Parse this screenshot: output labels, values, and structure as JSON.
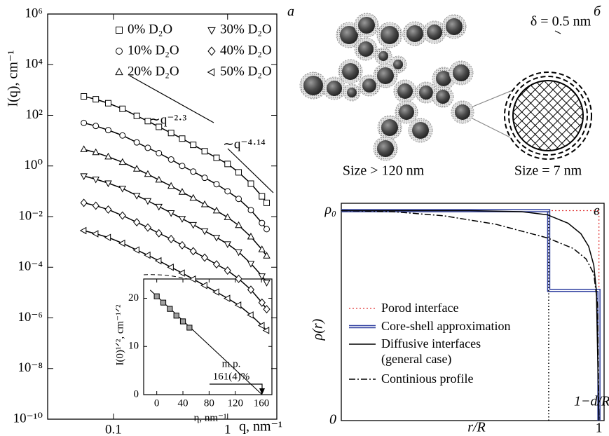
{
  "chart_data": [
    {
      "type": "line",
      "panel_label": "а",
      "xlabel": "q, nm⁻¹",
      "ylabel": "I(q), cm⁻¹",
      "xscale": "log",
      "yscale": "log",
      "xlim": [
        0.0265,
        2.7
      ],
      "ylim": [
        1e-10,
        1000000.0
      ],
      "xticks": [
        0.1,
        1
      ],
      "yticks": [
        {
          "value": 1e-10,
          "label": "10⁻¹⁰"
        },
        {
          "value": 1e-08,
          "label": "10⁻⁸"
        },
        {
          "value": 1e-06,
          "label": "10⁻⁶"
        },
        {
          "value": 0.0001,
          "label": "10⁻⁴"
        },
        {
          "value": 0.01,
          "label": "10⁻²"
        },
        {
          "value": 1,
          "label": "10⁰"
        },
        {
          "value": 100,
          "label": "10²"
        },
        {
          "value": 10000,
          "label": "10⁴"
        },
        {
          "value": 1000000.0,
          "label": "10⁶"
        }
      ],
      "x": [
        0.055,
        0.07,
        0.09,
        0.12,
        0.16,
        0.2,
        0.25,
        0.32,
        0.4,
        0.5,
        0.63,
        0.8,
        1.0,
        1.25,
        1.6,
        2.0,
        2.2
      ],
      "series": [
        {
          "name": "0% D₂O",
          "marker": "square",
          "color": "#000000",
          "values": [
            560,
            430,
            300,
            180,
            95,
            59,
            35,
            20,
            12,
            6.8,
            3.8,
            2.1,
            1.2,
            0.56,
            0.2,
            0.063,
            0.035
          ]
        },
        {
          "name": "10% D₂O",
          "marker": "circle",
          "color": "#000000",
          "values": [
            50,
            38,
            26,
            16,
            8.5,
            5.2,
            3.2,
            1.8,
            1.0,
            0.6,
            0.34,
            0.19,
            0.1,
            0.05,
            0.018,
            0.0056,
            0.0032
          ]
        },
        {
          "name": "20% D₂O",
          "marker": "triangle-up",
          "color": "#000000",
          "values": [
            4.5,
            3.4,
            2.3,
            1.4,
            0.76,
            0.47,
            0.28,
            0.16,
            0.093,
            0.054,
            0.03,
            0.017,
            0.0093,
            0.0045,
            0.0016,
            0.0005,
            0.00028
          ]
        },
        {
          "name": "30% D₂O",
          "marker": "triangle-down",
          "color": "#000000",
          "values": [
            0.4,
            0.3,
            0.21,
            0.13,
            0.068,
            0.042,
            0.025,
            0.014,
            0.0083,
            0.0048,
            0.0027,
            0.0015,
            0.00083,
            0.0004,
            0.00014,
            4.5e-05,
            2.5e-05
          ]
        },
        {
          "name": "40% D₂O",
          "marker": "diamond",
          "color": "#000000",
          "values": [
            0.035,
            0.027,
            0.019,
            0.011,
            0.006,
            0.0037,
            0.0022,
            0.0013,
            0.00074,
            0.00043,
            0.00024,
            0.00013,
            7.4e-05,
            3.5e-05,
            1.3e-05,
            4e-06,
            2.2e-06
          ]
        },
        {
          "name": "50% D₂O",
          "marker": "triangle-left",
          "color": "#000000",
          "values": [
            0.0028,
            0.0021,
            0.0015,
            0.00089,
            0.00048,
            0.0003,
            0.00018,
            0.0001,
            5.9e-05,
            3.4e-05,
            1.9e-05,
            1.05e-05,
            5.9e-06,
            3.2e-06,
            1.3e-06,
            5e-07,
            3.2e-07
          ]
        }
      ],
      "annotations": [
        "∼q⁻²·³",
        "∼q⁻⁴·¹⁴"
      ]
    },
    {
      "type": "scatter",
      "xlabel": "η, nm⁻¹",
      "ylabel": "I(0)¹ᐟ², cm⁻¹ᐟ²",
      "xlim": [
        -20,
        176
      ],
      "ylim": [
        0,
        24
      ],
      "xticks": [
        0,
        40,
        80,
        120,
        160
      ],
      "yticks": [
        0,
        10,
        20
      ],
      "x": [
        0,
        10,
        20,
        30,
        40,
        50
      ],
      "values": [
        20.4,
        19.1,
        17.8,
        16.4,
        15.2,
        13.9
      ],
      "marker": "square",
      "color": "#a0a0a0",
      "fit": {
        "x": [
          -10,
          161
        ],
        "values": [
          21.7,
          0
        ]
      },
      "annotations": [
        "m.p.",
        "161(4)%"
      ]
    },
    {
      "type": "line",
      "panel_label": "в",
      "xlabel": "r/R",
      "ylabel": "ρ(r)",
      "xlim": [
        0,
        1.02
      ],
      "ylim": [
        0,
        1.035
      ],
      "xticks": [
        1
      ],
      "yticks": [
        {
          "value": 1,
          "label": "ρ₀"
        },
        0
      ],
      "series": [
        {
          "name": "Porod interface",
          "style": "dotted",
          "color": "#e03030",
          "x": [
            0,
            1,
            1
          ],
          "values": [
            1,
            1,
            0
          ]
        },
        {
          "name": "Core-shell approximation",
          "style": "double",
          "color": "#3040a0",
          "x": [
            0,
            0.805,
            0.805,
            1,
            1
          ],
          "values": [
            1,
            1,
            0.62,
            0.62,
            0
          ]
        },
        {
          "name": "Diffusive interfaces (general case)",
          "style": "solid",
          "color": "#000000",
          "x": [
            0,
            0.5,
            0.7,
            0.8,
            0.88,
            0.93,
            0.96,
            0.98,
            0.99,
            1
          ],
          "values": [
            1,
            1,
            0.995,
            0.98,
            0.94,
            0.89,
            0.83,
            0.74,
            0.62,
            0
          ]
        },
        {
          "name": "Continious profile",
          "style": "dashdot",
          "color": "#000000",
          "x": [
            0,
            0.2,
            0.4,
            0.6,
            0.8,
            0.9,
            0.95,
            0.98,
            0.995,
            1
          ],
          "values": [
            1,
            0.995,
            0.975,
            0.935,
            0.87,
            0.82,
            0.77,
            0.7,
            0.55,
            0
          ]
        }
      ],
      "vline": {
        "x": 0.805,
        "label": "1−d/R"
      }
    }
  ],
  "diagram": {
    "panel_label": "б",
    "shell_label": "δ = 0.5 nm",
    "left_caption": "Size > 120 nm",
    "right_caption": "Size = 7 nm"
  }
}
